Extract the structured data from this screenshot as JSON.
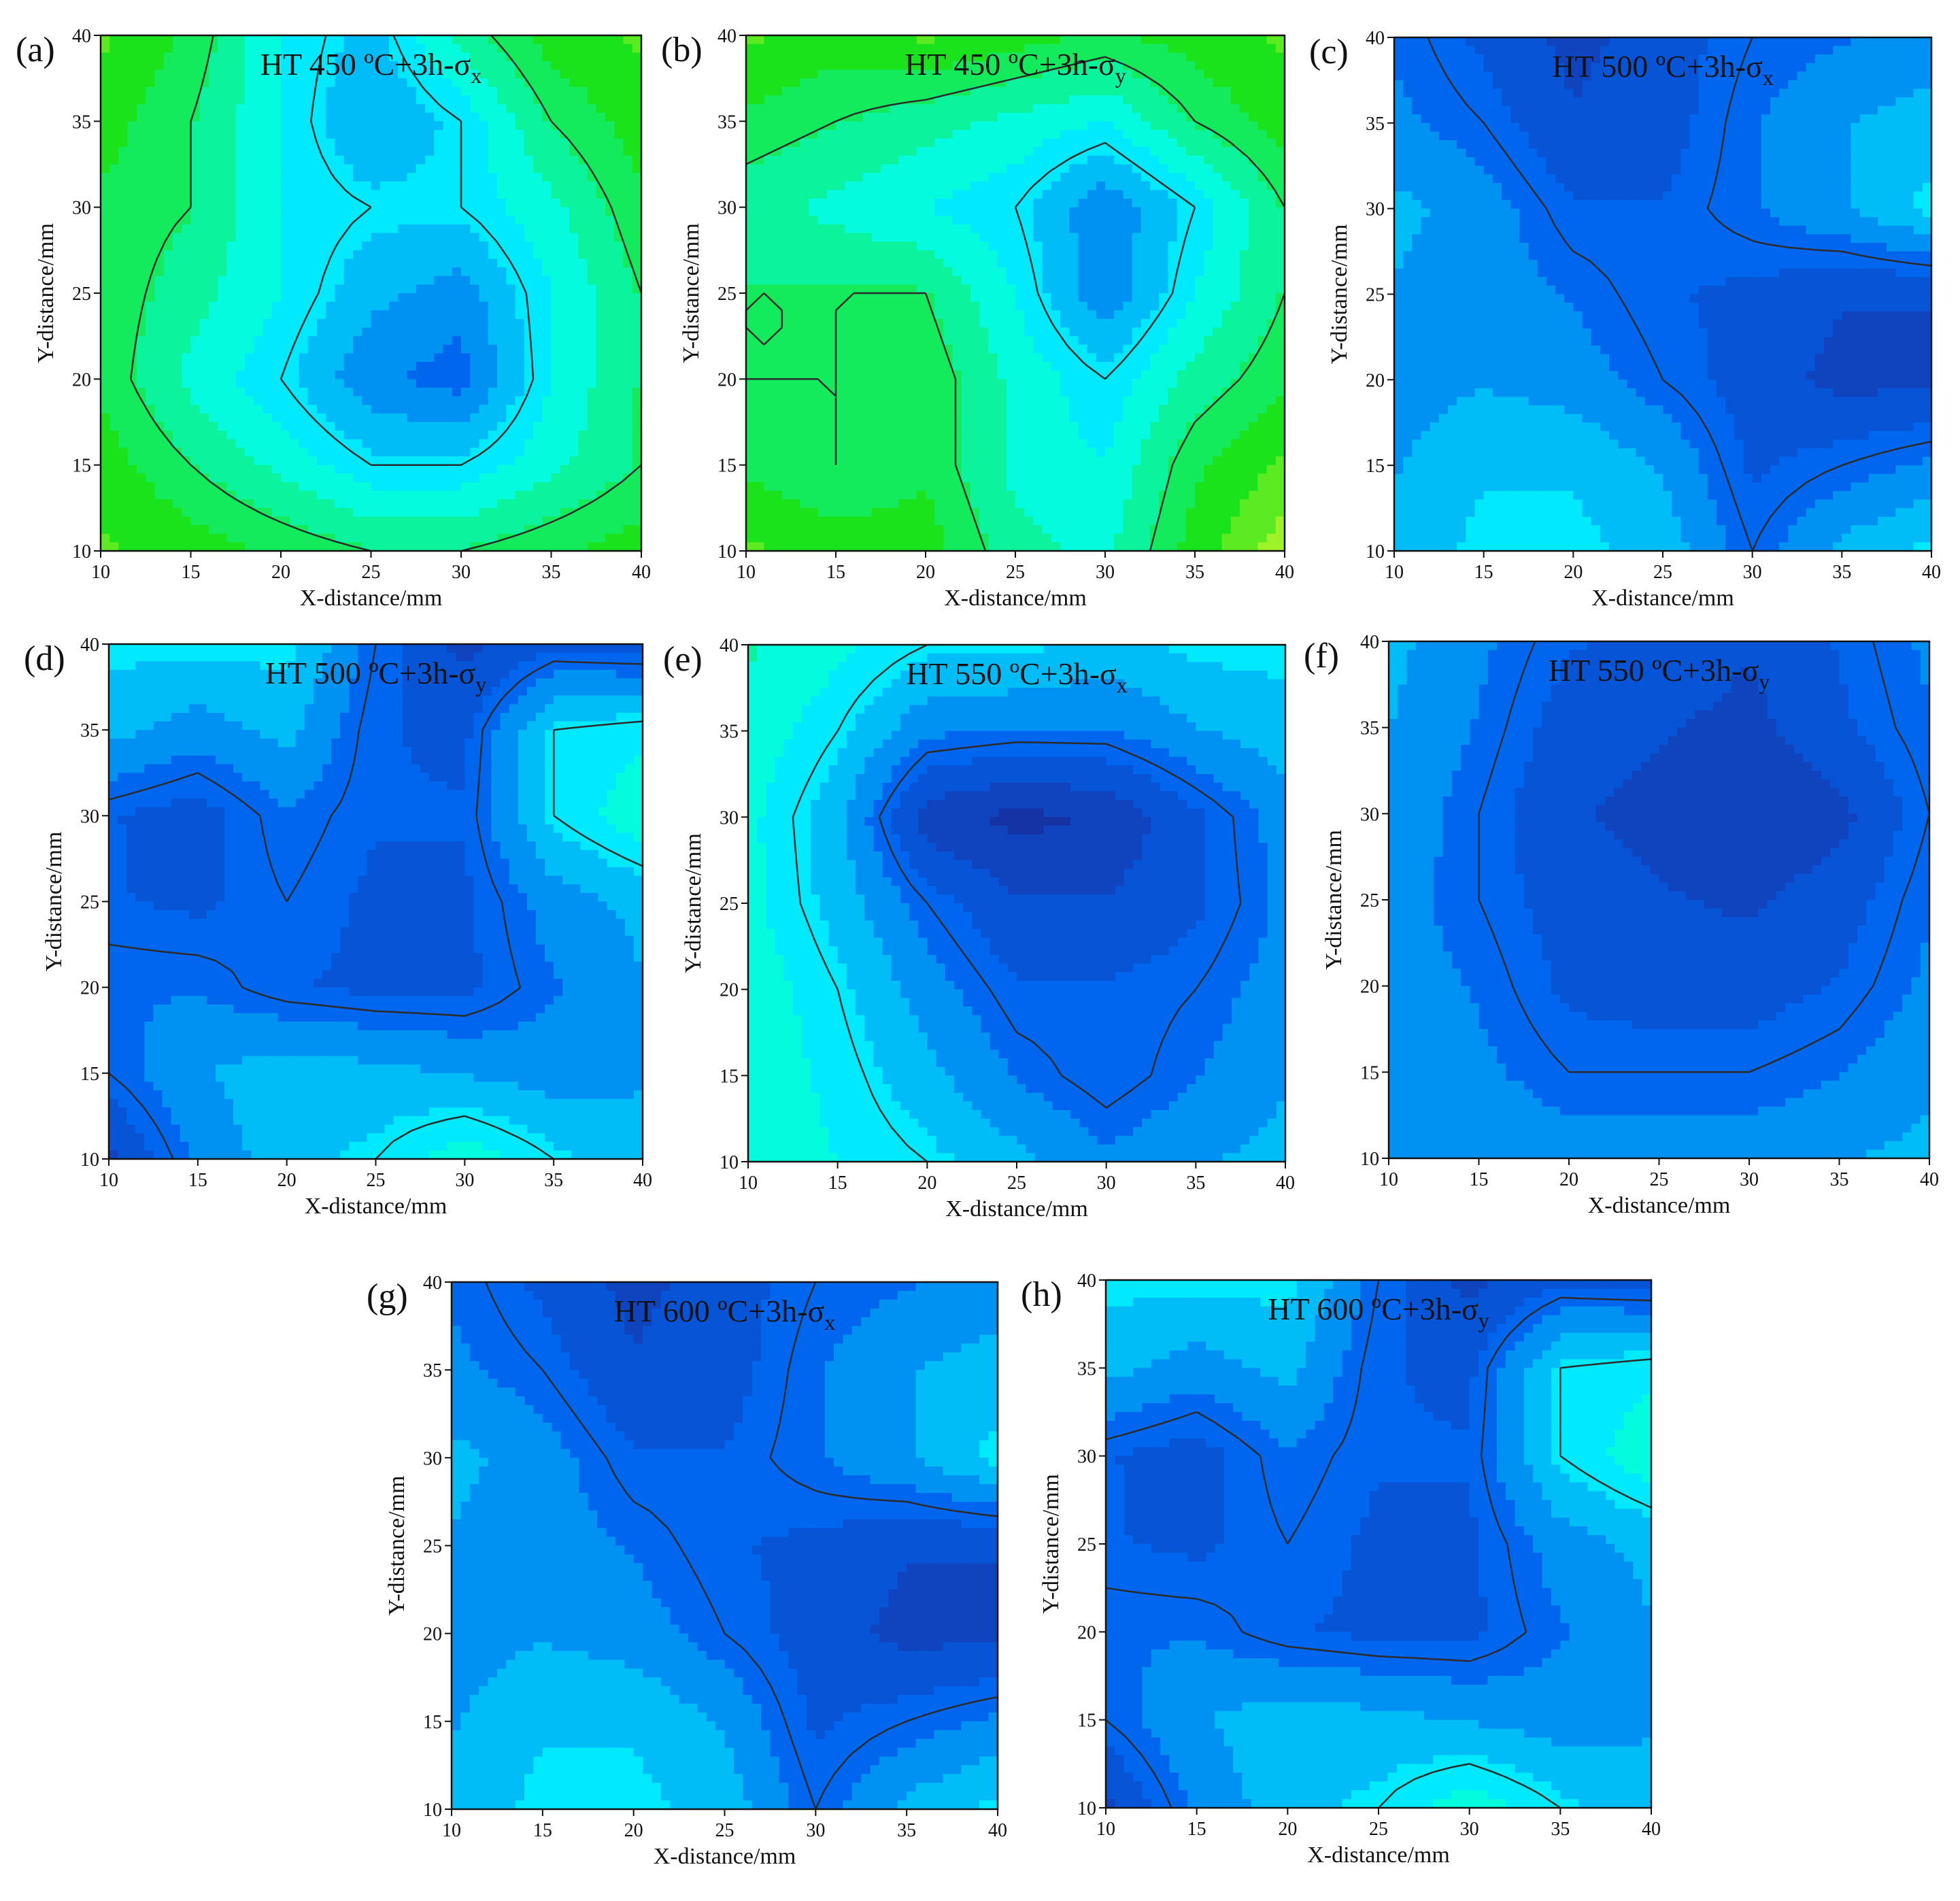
{
  "chart_data": [
    {
      "type": "heatmap",
      "letter": "(a)",
      "title": {
        "main": "HT 450 ºC+3h-σ",
        "sub": "x"
      },
      "xlabel": "X-distance/mm",
      "ylabel": "Y-distance/mm",
      "xlim": [
        10,
        40
      ],
      "ylim": [
        10,
        40
      ],
      "xticks": [
        10,
        15,
        20,
        25,
        30,
        35,
        40
      ],
      "yticks": [
        10,
        15,
        20,
        25,
        30,
        35,
        40
      ],
      "x": [
        10,
        15,
        20,
        25,
        30,
        35,
        40
      ],
      "y": [
        10,
        15,
        20,
        25,
        30,
        35,
        40
      ],
      "z": [
        [
          0.2,
          0.25,
          0.3,
          0.35,
          0.35,
          0.3,
          0.25
        ],
        [
          0.25,
          0.35,
          0.45,
          0.55,
          0.55,
          0.45,
          0.35
        ],
        [
          0.3,
          0.45,
          0.55,
          0.7,
          0.75,
          0.5,
          0.35
        ],
        [
          0.3,
          0.4,
          0.5,
          0.62,
          0.68,
          0.5,
          0.35
        ],
        [
          0.3,
          0.35,
          0.5,
          0.55,
          0.55,
          0.45,
          0.3
        ],
        [
          0.25,
          0.35,
          0.5,
          0.65,
          0.55,
          0.35,
          0.25
        ],
        [
          0.2,
          0.3,
          0.5,
          0.6,
          0.4,
          0.25,
          0.2
        ]
      ]
    },
    {
      "type": "heatmap",
      "letter": "(b)",
      "title": {
        "main": "HT 450 ºC+3h-σ",
        "sub": "y"
      },
      "xlabel": "X-distance/mm",
      "ylabel": "Y-distance/mm",
      "xlim": [
        10,
        40
      ],
      "ylim": [
        10,
        40
      ],
      "xticks": [
        10,
        15,
        20,
        25,
        30,
        35,
        40
      ],
      "yticks": [
        10,
        15,
        20,
        25,
        30,
        35,
        40
      ],
      "x": [
        10,
        15,
        20,
        25,
        30,
        35,
        40
      ],
      "y": [
        10,
        15,
        20,
        25,
        30,
        35,
        40
      ],
      "z": [
        [
          0.2,
          0.25,
          0.25,
          0.4,
          0.45,
          0.25,
          0.1
        ],
        [
          0.3,
          0.35,
          0.3,
          0.45,
          0.5,
          0.3,
          0.2
        ],
        [
          0.35,
          0.35,
          0.3,
          0.45,
          0.55,
          0.4,
          0.3
        ],
        [
          0.35,
          0.35,
          0.35,
          0.5,
          0.7,
          0.5,
          0.35
        ],
        [
          0.4,
          0.45,
          0.5,
          0.55,
          0.7,
          0.55,
          0.35
        ],
        [
          0.3,
          0.35,
          0.4,
          0.45,
          0.5,
          0.35,
          0.25
        ],
        [
          0.2,
          0.25,
          0.2,
          0.25,
          0.3,
          0.25,
          0.2
        ]
      ]
    },
    {
      "type": "heatmap",
      "letter": "(c)",
      "title": {
        "main": "HT 500 ºC+3h-σ",
        "sub": "x"
      },
      "xlabel": "X-distance/mm",
      "ylabel": "Y-distance/mm",
      "xlim": [
        10,
        40
      ],
      "ylim": [
        10,
        40
      ],
      "xticks": [
        10,
        15,
        20,
        25,
        30,
        35,
        40
      ],
      "yticks": [
        10,
        15,
        20,
        25,
        30,
        35,
        40
      ],
      "x": [
        10,
        15,
        20,
        25,
        30,
        35,
        40
      ],
      "y": [
        10,
        15,
        20,
        25,
        30,
        35,
        40
      ],
      "z": [
        [
          0.62,
          0.55,
          0.55,
          0.6,
          0.75,
          0.62,
          0.55
        ],
        [
          0.65,
          0.58,
          0.58,
          0.65,
          0.8,
          0.75,
          0.7
        ],
        [
          0.68,
          0.65,
          0.68,
          0.75,
          0.82,
          0.88,
          0.88
        ],
        [
          0.65,
          0.68,
          0.72,
          0.78,
          0.8,
          0.85,
          0.85
        ],
        [
          0.62,
          0.68,
          0.78,
          0.78,
          0.72,
          0.65,
          0.55
        ],
        [
          0.7,
          0.75,
          0.85,
          0.82,
          0.72,
          0.65,
          0.6
        ],
        [
          0.72,
          0.8,
          0.88,
          0.82,
          0.75,
          0.72,
          0.7
        ]
      ]
    },
    {
      "type": "heatmap",
      "letter": "(d)",
      "title": {
        "main": "HT 500 ºC+3h-σ",
        "sub": "y"
      },
      "xlabel": "X-distance/mm",
      "ylabel": "Y-distance/mm",
      "xlim": [
        10,
        40
      ],
      "ylim": [
        10,
        40
      ],
      "xticks": [
        10,
        15,
        20,
        25,
        30,
        35,
        40
      ],
      "yticks": [
        10,
        15,
        20,
        25,
        30,
        35,
        40
      ],
      "x": [
        10,
        15,
        20,
        25,
        30,
        35,
        40
      ],
      "y": [
        10,
        15,
        20,
        25,
        30,
        35,
        40
      ],
      "z": [
        [
          0.88,
          0.7,
          0.6,
          0.55,
          0.45,
          0.55,
          0.62
        ],
        [
          0.75,
          0.65,
          0.6,
          0.62,
          0.65,
          0.68,
          0.65
        ],
        [
          0.72,
          0.72,
          0.78,
          0.8,
          0.8,
          0.72,
          0.65
        ],
        [
          0.78,
          0.8,
          0.75,
          0.8,
          0.8,
          0.68,
          0.62
        ],
        [
          0.78,
          0.82,
          0.72,
          0.78,
          0.78,
          0.55,
          0.45
        ],
        [
          0.62,
          0.68,
          0.62,
          0.78,
          0.8,
          0.55,
          0.52
        ],
        [
          0.55,
          0.55,
          0.55,
          0.75,
          0.88,
          0.8,
          0.82
        ]
      ]
    },
    {
      "type": "heatmap",
      "letter": "(e)",
      "title": {
        "main": "HT 550 ºC+3h-σ",
        "sub": "x"
      },
      "xlabel": "X-distance/mm",
      "ylabel": "Y-distance/mm",
      "xlim": [
        10,
        40
      ],
      "ylim": [
        10,
        40
      ],
      "xticks": [
        10,
        15,
        20,
        25,
        30,
        35,
        40
      ],
      "yticks": [
        10,
        15,
        20,
        25,
        30,
        35,
        40
      ],
      "x": [
        10,
        15,
        20,
        25,
        30,
        35,
        40
      ],
      "y": [
        10,
        15,
        20,
        25,
        30,
        35,
        40
      ],
      "z": [
        [
          0.45,
          0.5,
          0.55,
          0.62,
          0.7,
          0.65,
          0.62
        ],
        [
          0.45,
          0.52,
          0.62,
          0.72,
          0.78,
          0.72,
          0.65
        ],
        [
          0.45,
          0.55,
          0.68,
          0.78,
          0.78,
          0.75,
          0.68
        ],
        [
          0.48,
          0.6,
          0.75,
          0.85,
          0.85,
          0.8,
          0.7
        ],
        [
          0.48,
          0.62,
          0.9,
          0.95,
          0.92,
          0.8,
          0.68
        ],
        [
          0.45,
          0.55,
          0.7,
          0.72,
          0.72,
          0.65,
          0.6
        ],
        [
          0.42,
          0.48,
          0.55,
          0.55,
          0.6,
          0.55,
          0.55
        ]
      ]
    },
    {
      "type": "heatmap",
      "letter": "(f)",
      "title": {
        "main": "HT 550 ºC+3h-σ",
        "sub": "y"
      },
      "xlabel": "X-distance/mm",
      "ylabel": "Y-distance/mm",
      "xlim": [
        10,
        40
      ],
      "ylim": [
        10,
        40
      ],
      "xticks": [
        10,
        15,
        20,
        25,
        30,
        35,
        40
      ],
      "yticks": [
        10,
        15,
        20,
        25,
        30,
        35,
        40
      ],
      "x": [
        10,
        15,
        20,
        25,
        30,
        35,
        40
      ],
      "y": [
        10,
        15,
        20,
        25,
        30,
        35,
        40
      ],
      "z": [
        [
          0.65,
          0.65,
          0.68,
          0.68,
          0.68,
          0.65,
          0.62
        ],
        [
          0.66,
          0.7,
          0.75,
          0.75,
          0.75,
          0.72,
          0.66
        ],
        [
          0.68,
          0.72,
          0.8,
          0.82,
          0.82,
          0.78,
          0.7
        ],
        [
          0.68,
          0.75,
          0.82,
          0.85,
          0.87,
          0.82,
          0.72
        ],
        [
          0.66,
          0.75,
          0.85,
          0.88,
          0.92,
          0.88,
          0.75
        ],
        [
          0.64,
          0.72,
          0.82,
          0.85,
          0.88,
          0.8,
          0.72
        ],
        [
          0.62,
          0.7,
          0.78,
          0.8,
          0.85,
          0.78,
          0.7
        ]
      ]
    },
    {
      "type": "heatmap",
      "letter": "(g)",
      "title": {
        "main": "HT 600 ºC+3h-σ",
        "sub": "x"
      },
      "xlabel": "X-distance/mm",
      "ylabel": "Y-distance/mm",
      "xlim": [
        10,
        40
      ],
      "ylim": [
        10,
        40
      ],
      "xticks": [
        10,
        15,
        20,
        25,
        30,
        35,
        40
      ],
      "yticks": [
        10,
        15,
        20,
        25,
        30,
        35,
        40
      ],
      "x": [
        10,
        15,
        20,
        25,
        30,
        35,
        40
      ],
      "y": [
        10,
        15,
        20,
        25,
        30,
        35,
        40
      ],
      "z": [
        [
          0.62,
          0.55,
          0.55,
          0.6,
          0.75,
          0.62,
          0.55
        ],
        [
          0.65,
          0.58,
          0.58,
          0.65,
          0.8,
          0.75,
          0.7
        ],
        [
          0.68,
          0.65,
          0.68,
          0.75,
          0.82,
          0.88,
          0.88
        ],
        [
          0.65,
          0.68,
          0.72,
          0.78,
          0.8,
          0.85,
          0.85
        ],
        [
          0.62,
          0.68,
          0.78,
          0.78,
          0.72,
          0.65,
          0.55
        ],
        [
          0.7,
          0.75,
          0.85,
          0.82,
          0.72,
          0.65,
          0.6
        ],
        [
          0.72,
          0.8,
          0.88,
          0.82,
          0.75,
          0.72,
          0.7
        ]
      ]
    },
    {
      "type": "heatmap",
      "letter": "(h)",
      "title": {
        "main": "HT 600 ºC+3h-σ",
        "sub": "y"
      },
      "xlabel": "X-distance/mm",
      "ylabel": "Y-distance/mm",
      "xlim": [
        10,
        40
      ],
      "ylim": [
        10,
        40
      ],
      "xticks": [
        10,
        15,
        20,
        25,
        30,
        35,
        40
      ],
      "yticks": [
        10,
        15,
        20,
        25,
        30,
        35,
        40
      ],
      "x": [
        10,
        15,
        20,
        25,
        30,
        35,
        40
      ],
      "y": [
        10,
        15,
        20,
        25,
        30,
        35,
        40
      ],
      "z": [
        [
          0.88,
          0.7,
          0.6,
          0.55,
          0.45,
          0.55,
          0.62
        ],
        [
          0.75,
          0.65,
          0.6,
          0.62,
          0.65,
          0.68,
          0.65
        ],
        [
          0.72,
          0.72,
          0.78,
          0.8,
          0.8,
          0.72,
          0.65
        ],
        [
          0.78,
          0.8,
          0.75,
          0.8,
          0.8,
          0.68,
          0.62
        ],
        [
          0.78,
          0.82,
          0.72,
          0.78,
          0.78,
          0.55,
          0.45
        ],
        [
          0.62,
          0.68,
          0.62,
          0.78,
          0.8,
          0.55,
          0.52
        ],
        [
          0.55,
          0.55,
          0.55,
          0.75,
          0.88,
          0.8,
          0.82
        ]
      ]
    }
  ],
  "colorscale": [
    "#ffff30",
    "#1be31b",
    "#00ffff",
    "#0066ee",
    "#1a2a9a"
  ]
}
